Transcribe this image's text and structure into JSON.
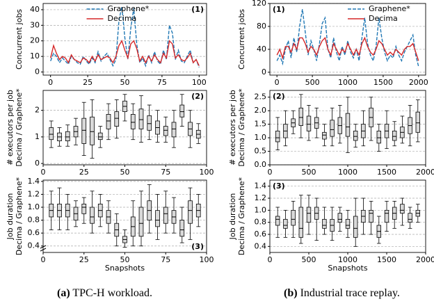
{
  "chart_data": [
    {
      "type": "line",
      "annotation": "(1)",
      "annotation_corner": "upper right",
      "legend": "upper center",
      "ylabel": [
        "Concurrent jobs"
      ],
      "xlim": [
        -5,
        105
      ],
      "xticks": [
        0,
        25,
        50,
        75,
        100
      ],
      "ylim": [
        -2,
        44
      ],
      "yticks": [
        0,
        10,
        20,
        30,
        40
      ],
      "grid": true,
      "x": [
        0,
        2,
        4,
        6,
        8,
        10,
        12,
        14,
        16,
        18,
        20,
        22,
        24,
        26,
        28,
        30,
        32,
        34,
        36,
        38,
        40,
        42,
        44,
        46,
        48,
        50,
        52,
        54,
        56,
        58,
        60,
        62,
        64,
        66,
        68,
        70,
        72,
        74,
        76,
        78,
        80,
        82,
        84,
        86,
        88,
        90,
        92,
        94,
        96,
        98,
        100
      ],
      "series": [
        {
          "name": "Graphene*",
          "color": "#1f77b4",
          "linestyle": "dashed",
          "values": [
            7,
            12,
            10,
            6,
            9,
            7,
            5,
            10,
            8,
            6,
            5,
            10,
            7,
            5,
            9,
            6,
            13,
            7,
            10,
            12,
            8,
            4,
            8,
            33,
            42,
            22,
            8,
            28,
            41,
            18,
            6,
            9,
            4,
            11,
            6,
            13,
            7,
            5,
            14,
            8,
            30,
            25,
            8,
            14,
            7,
            6,
            10,
            14,
            6,
            8,
            3
          ]
        },
        {
          "name": "Decima",
          "color": "#d62728",
          "linestyle": "solid",
          "values": [
            9,
            17,
            12,
            8,
            10,
            9,
            6,
            11,
            8,
            7,
            6,
            9,
            8,
            6,
            10,
            7,
            11,
            8,
            9,
            10,
            9,
            6,
            10,
            17,
            20,
            14,
            9,
            18,
            20,
            15,
            7,
            10,
            6,
            10,
            7,
            11,
            8,
            6,
            12,
            9,
            20,
            18,
            9,
            11,
            8,
            7,
            9,
            12,
            6,
            8,
            4
          ]
        }
      ]
    },
    {
      "type": "line",
      "annotation": "(1)",
      "annotation_corner": "upper left",
      "legend": "upper right",
      "ylabel": [
        "Concurrent jobs"
      ],
      "xlim": [
        -100,
        2100
      ],
      "xticks": [
        0,
        500,
        1000,
        1500,
        2000
      ],
      "ylim": [
        -5,
        120
      ],
      "yticks": [
        0,
        40,
        80,
        120
      ],
      "grid": true,
      "x": [
        0,
        40,
        80,
        120,
        160,
        200,
        240,
        280,
        320,
        360,
        400,
        440,
        480,
        520,
        560,
        600,
        640,
        680,
        720,
        760,
        800,
        840,
        880,
        920,
        960,
        1000,
        1040,
        1080,
        1120,
        1160,
        1200,
        1240,
        1280,
        1320,
        1360,
        1400,
        1440,
        1480,
        1520,
        1560,
        1600,
        1640,
        1680,
        1720,
        1760,
        1800,
        1840,
        1880,
        1920,
        1960,
        2000
      ],
      "series": [
        {
          "name": "Graphene*",
          "color": "#1f77b4",
          "linestyle": "dashed",
          "values": [
            20,
            30,
            15,
            40,
            55,
            25,
            60,
            35,
            80,
            110,
            70,
            30,
            55,
            40,
            20,
            50,
            85,
            95,
            40,
            25,
            60,
            35,
            20,
            45,
            30,
            55,
            35,
            25,
            40,
            20,
            60,
            95,
            50,
            30,
            20,
            45,
            95,
            60,
            35,
            20,
            30,
            25,
            45,
            30,
            20,
            35,
            45,
            55,
            65,
            30,
            10
          ]
        },
        {
          "name": "Decima",
          "color": "#d62728",
          "linestyle": "solid",
          "values": [
            30,
            40,
            25,
            45,
            45,
            35,
            50,
            40,
            60,
            60,
            50,
            35,
            45,
            40,
            30,
            45,
            55,
            60,
            40,
            30,
            50,
            40,
            30,
            40,
            35,
            50,
            40,
            30,
            40,
            30,
            50,
            60,
            45,
            35,
            30,
            40,
            55,
            50,
            40,
            30,
            35,
            30,
            40,
            35,
            30,
            40,
            45,
            45,
            50,
            35,
            20
          ]
        }
      ]
    },
    {
      "type": "box",
      "annotation": "(2)",
      "annotation_corner": "upper right",
      "color": "#d9d9d9",
      "ylabel": [
        "# executors per job",
        "Decima / Graphene*"
      ],
      "xlim": [
        0,
        100
      ],
      "xticks": [
        0,
        25,
        50,
        75,
        100
      ],
      "ylim": [
        -0.05,
        2.75
      ],
      "yticks": [
        0,
        1,
        2
      ],
      "grid": true,
      "x": [
        5,
        10,
        15,
        20,
        25,
        30,
        35,
        40,
        45,
        50,
        55,
        60,
        65,
        70,
        75,
        80,
        85,
        90,
        95
      ],
      "low": [
        0.6,
        0.65,
        0.65,
        0.7,
        0.3,
        0.2,
        0.6,
        0.9,
        0.95,
        1.6,
        0.9,
        0.8,
        0.9,
        0.8,
        0.8,
        0.6,
        1.4,
        0.6,
        0.75
      ],
      "q1": [
        0.9,
        0.85,
        0.85,
        1.0,
        0.75,
        0.7,
        0.9,
        1.3,
        1.4,
        1.95,
        1.3,
        1.3,
        1.25,
        1.1,
        1.05,
        1.0,
        1.75,
        1.05,
        0.95
      ],
      "median": [
        1.1,
        1.0,
        1.0,
        1.2,
        1.25,
        1.2,
        1.0,
        1.6,
        1.7,
        2.15,
        1.55,
        1.65,
        1.5,
        1.35,
        1.25,
        1.3,
        1.95,
        1.3,
        1.1
      ],
      "q3": [
        1.35,
        1.15,
        1.2,
        1.4,
        1.7,
        1.75,
        1.15,
        1.85,
        1.95,
        2.35,
        1.85,
        2.05,
        1.8,
        1.6,
        1.4,
        1.55,
        2.2,
        1.55,
        1.25
      ],
      "high": [
        1.6,
        1.35,
        1.45,
        1.7,
        2.3,
        2.4,
        1.4,
        2.25,
        2.4,
        2.6,
        2.25,
        2.55,
        2.2,
        2.0,
        1.75,
        2.0,
        2.6,
        2.0,
        1.5
      ]
    },
    {
      "type": "box",
      "annotation": "(2)",
      "annotation_corner": "upper left",
      "color": "#d9d9d9",
      "ylabel": [
        "# executors per job",
        "Decima / Graphene*"
      ],
      "xlim": [
        0,
        2000
      ],
      "xticks": [
        0,
        500,
        1000,
        1500,
        2000
      ],
      "ylim": [
        0,
        2.75
      ],
      "yticks": [
        {
          "value": 0,
          "label": "0.0"
        },
        0.5,
        {
          "value": 1,
          "label": "1.0"
        },
        1.5,
        {
          "value": 2,
          "label": "2.0"
        },
        2.5
      ],
      "grid": true,
      "x": [
        100,
        200,
        300,
        400,
        500,
        600,
        700,
        800,
        900,
        1000,
        1100,
        1200,
        1300,
        1400,
        1500,
        1600,
        1700,
        1800,
        1900
      ],
      "low": [
        0.55,
        0.7,
        1.15,
        1.0,
        0.9,
        1.0,
        0.7,
        0.7,
        0.8,
        0.45,
        0.65,
        0.7,
        0.9,
        0.5,
        0.6,
        0.7,
        0.8,
        0.7,
        0.85
      ],
      "q1": [
        0.85,
        1.0,
        1.4,
        1.45,
        1.25,
        1.35,
        0.95,
        1.05,
        1.15,
        1.05,
        0.9,
        1.0,
        1.4,
        0.8,
        1.0,
        0.9,
        1.0,
        1.15,
        1.2
      ],
      "median": [
        1.0,
        1.25,
        1.55,
        1.75,
        1.5,
        1.55,
        1.1,
        1.3,
        1.45,
        1.4,
        1.05,
        1.25,
        1.75,
        1.0,
        1.25,
        1.05,
        1.2,
        1.45,
        1.55
      ],
      "q3": [
        1.25,
        1.5,
        1.7,
        2.1,
        1.8,
        1.75,
        1.2,
        1.65,
        1.75,
        1.9,
        1.25,
        1.5,
        2.1,
        1.25,
        1.5,
        1.25,
        1.4,
        1.75,
        1.95
      ],
      "high": [
        1.75,
        2.0,
        2.0,
        2.6,
        2.2,
        2.1,
        1.5,
        2.1,
        2.2,
        2.5,
        1.5,
        2.0,
        2.5,
        1.5,
        2.0,
        1.6,
        1.8,
        2.2,
        2.4
      ]
    },
    {
      "type": "box",
      "annotation": "(3)",
      "annotation_corner": "lower right",
      "color": "#d9d9d9",
      "axis_break": true,
      "ylabel": [
        "Job duration",
        "Decima / Graphene*"
      ],
      "xlabel": "Snapshots",
      "xlim": [
        0,
        100
      ],
      "xticks": [
        0,
        25,
        50,
        75,
        100
      ],
      "ylim": [
        0.3,
        1.42
      ],
      "yticks": [
        0.4,
        0.6,
        0.8,
        {
          "value": 1,
          "label": "1.0"
        },
        1.2,
        1.4
      ],
      "grid": true,
      "x": [
        5,
        10,
        15,
        20,
        25,
        30,
        35,
        40,
        45,
        50,
        55,
        60,
        65,
        70,
        75,
        80,
        85,
        90,
        95
      ],
      "low": [
        0.65,
        0.65,
        0.65,
        0.7,
        0.75,
        0.6,
        0.7,
        0.6,
        0.4,
        0.38,
        0.4,
        0.4,
        0.6,
        0.5,
        0.6,
        0.6,
        0.45,
        0.5,
        0.7
      ],
      "q1": [
        0.85,
        0.85,
        0.85,
        0.8,
        0.9,
        0.75,
        0.85,
        0.75,
        0.55,
        0.45,
        0.55,
        0.55,
        0.8,
        0.7,
        0.75,
        0.75,
        0.55,
        0.75,
        0.85
      ],
      "median": [
        0.95,
        0.95,
        0.95,
        0.9,
        1.0,
        0.85,
        0.95,
        0.85,
        0.65,
        0.5,
        0.7,
        0.75,
        0.95,
        0.8,
        0.9,
        0.85,
        0.65,
        0.95,
        0.95
      ],
      "q3": [
        1.05,
        1.05,
        1.05,
        1.0,
        1.05,
        1.0,
        1.05,
        0.95,
        0.75,
        0.55,
        0.85,
        1.0,
        1.1,
        0.95,
        1.0,
        0.95,
        0.8,
        1.1,
        1.05
      ],
      "high": [
        1.25,
        1.3,
        1.2,
        1.1,
        1.15,
        1.25,
        1.2,
        1.1,
        0.9,
        0.65,
        1.1,
        1.25,
        1.35,
        1.2,
        1.25,
        1.15,
        1.0,
        1.3,
        1.2
      ]
    },
    {
      "type": "box",
      "annotation": "(3)",
      "annotation_corner": "upper left",
      "color": "#d9d9d9",
      "ylabel": [
        "Job duration",
        "Decima / Graphene*"
      ],
      "xlabel": "Snapshots",
      "xlim": [
        0,
        2000
      ],
      "xticks": [
        0,
        500,
        1000,
        1500,
        2000
      ],
      "ylim": [
        0.3,
        1.5
      ],
      "yticks": [
        0.4,
        0.6,
        0.8,
        {
          "value": 1,
          "label": "1.0"
        },
        1.2,
        1.4
      ],
      "grid": true,
      "x": [
        100,
        200,
        300,
        400,
        500,
        600,
        700,
        800,
        900,
        1000,
        1100,
        1200,
        1300,
        1400,
        1500,
        1600,
        1700,
        1800,
        1900
      ],
      "low": [
        0.55,
        0.55,
        0.55,
        0.45,
        0.6,
        0.5,
        0.6,
        0.5,
        0.65,
        0.55,
        0.4,
        0.6,
        0.6,
        0.45,
        0.65,
        0.7,
        0.75,
        0.7,
        0.8
      ],
      "q1": [
        0.75,
        0.7,
        0.75,
        0.55,
        0.8,
        0.85,
        0.7,
        0.65,
        0.8,
        0.7,
        0.55,
        0.8,
        0.8,
        0.55,
        0.8,
        0.85,
        0.95,
        0.8,
        0.9
      ],
      "median": [
        0.85,
        0.75,
        0.85,
        0.7,
        0.95,
        0.95,
        0.75,
        0.75,
        0.85,
        0.75,
        0.7,
        0.9,
        0.95,
        0.65,
        0.95,
        0.95,
        1.0,
        0.85,
        0.95
      ],
      "q3": [
        0.9,
        0.85,
        1.0,
        1.05,
        1.05,
        1.05,
        0.85,
        0.85,
        0.95,
        0.85,
        0.9,
        1.0,
        1.0,
        0.75,
        1.0,
        1.05,
        1.1,
        0.95,
        1.0
      ],
      "high": [
        1.05,
        1.0,
        1.15,
        1.25,
        1.25,
        1.2,
        1.05,
        1.05,
        1.05,
        1.0,
        1.2,
        1.2,
        1.15,
        0.9,
        1.15,
        1.15,
        1.2,
        1.05,
        1.1
      ]
    }
  ],
  "captions": [
    {
      "label": "(a)",
      "text": "TPC-H workload."
    },
    {
      "label": "(b)",
      "text": "Industrial trace replay."
    }
  ]
}
